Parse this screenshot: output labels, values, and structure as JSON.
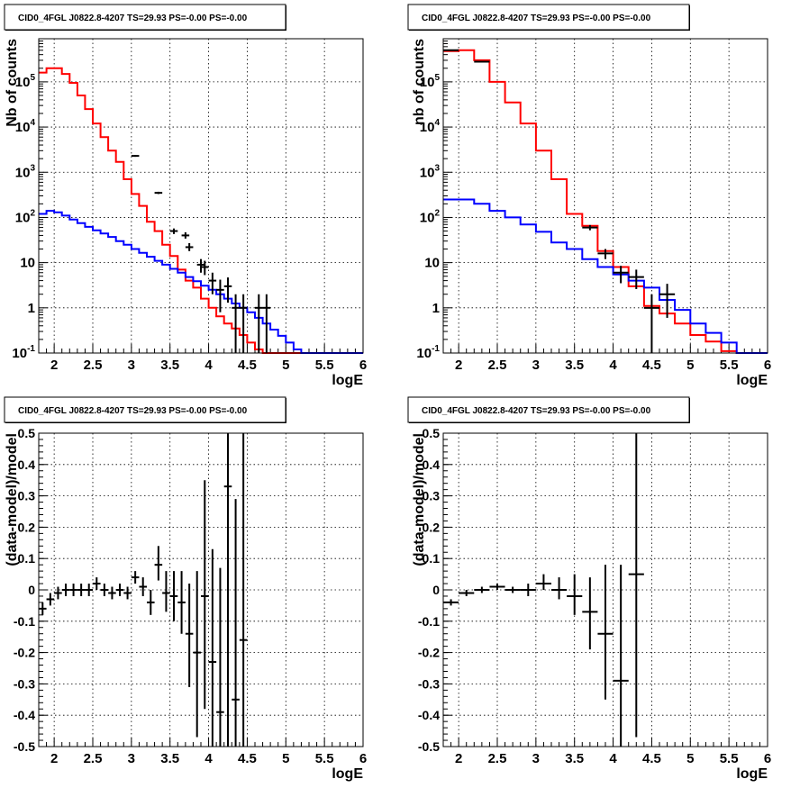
{
  "chart_data": [
    {
      "type": "line",
      "title": "CID0_4FGL J0822.8-4207 TS=29.93 PS=-0.00 PS=-0.00",
      "xlabel": "logE",
      "ylabel": "Nb of counts",
      "xlim": [
        1.8,
        6.0
      ],
      "ylim": [
        0.1,
        900000
      ],
      "yscale": "log",
      "grid": true,
      "xticks": [
        "2",
        "2.5",
        "3",
        "3.5",
        "4",
        "4.5",
        "5",
        "5.5",
        "6"
      ],
      "yticks": [
        "10^-1",
        "1",
        "10",
        "10^2",
        "10^3",
        "10^4",
        "10^5"
      ],
      "series": [
        {
          "kind": "step",
          "color": "#ff0000",
          "edges": [
            1.8,
            1.9,
            2.0,
            2.1,
            2.2,
            2.3,
            2.4,
            2.5,
            2.6,
            2.7,
            2.8,
            2.9,
            3.0,
            3.1,
            3.2,
            3.3,
            3.4,
            3.5,
            3.6,
            3.7,
            3.8,
            3.9,
            4.0,
            4.1,
            4.2,
            4.3,
            4.4,
            4.5,
            4.6,
            4.7,
            4.8,
            4.9,
            5.0,
            5.1,
            5.2,
            5.3,
            5.4,
            5.5,
            5.6,
            5.7,
            5.8,
            5.9,
            6.0
          ],
          "values": [
            160000,
            200000,
            200000,
            150000,
            95000,
            50000,
            25000,
            12000,
            6000,
            3000,
            1700,
            700,
            330,
            180,
            80,
            50,
            25,
            14,
            7,
            4,
            2.8,
            1.6,
            1.0,
            0.65,
            0.45,
            0.35,
            0.25,
            0.17,
            0.12,
            0.1,
            0.1,
            0.1,
            0.1,
            0.1,
            0.1,
            0.1,
            0.1,
            0.1,
            0.1,
            0.1,
            0.1,
            0.1
          ]
        },
        {
          "kind": "step",
          "color": "#0000ff",
          "edges": [
            1.8,
            1.9,
            2.0,
            2.1,
            2.2,
            2.3,
            2.4,
            2.5,
            2.6,
            2.7,
            2.8,
            2.9,
            3.0,
            3.1,
            3.2,
            3.3,
            3.4,
            3.5,
            3.6,
            3.7,
            3.8,
            3.9,
            4.0,
            4.1,
            4.2,
            4.3,
            4.4,
            4.5,
            4.6,
            4.7,
            4.8,
            4.9,
            5.0,
            5.1,
            5.2,
            5.3,
            5.4,
            5.5,
            5.6,
            5.7,
            5.8,
            5.9,
            6.0
          ],
          "values": [
            120,
            140,
            130,
            110,
            90,
            75,
            62,
            52,
            44,
            37,
            30,
            25,
            20,
            16.5,
            13.5,
            11,
            9,
            7.3,
            6,
            4.8,
            3.9,
            3.1,
            2.5,
            2.0,
            1.6,
            1.25,
            1.0,
            0.8,
            0.6,
            0.45,
            0.33,
            0.24,
            0.17,
            0.12,
            0.1,
            0.1,
            0.1,
            0.1,
            0.1,
            0.1,
            0.1,
            0.1
          ]
        },
        {
          "kind": "points",
          "color": "#000000",
          "points": [
            {
              "x": 3.05,
              "y": 2300,
              "xerr": 0.05,
              "ylo": 2200,
              "yhi": 2400
            },
            {
              "x": 3.35,
              "y": 350,
              "xerr": 0.05,
              "ylo": 330,
              "yhi": 370
            },
            {
              "x": 3.55,
              "y": 50,
              "xerr": 0.05,
              "ylo": 43,
              "yhi": 57
            },
            {
              "x": 3.7,
              "y": 40,
              "xerr": 0.05,
              "ylo": 34,
              "yhi": 47
            },
            {
              "x": 3.75,
              "y": 22,
              "xerr": 0.05,
              "ylo": 18,
              "yhi": 27
            },
            {
              "x": 3.9,
              "y": 9,
              "xerr": 0.05,
              "ylo": 6,
              "yhi": 12
            },
            {
              "x": 3.95,
              "y": 8,
              "xerr": 0.05,
              "ylo": 5.3,
              "yhi": 11
            },
            {
              "x": 4.05,
              "y": 4,
              "xerr": 0.05,
              "ylo": 2,
              "yhi": 6
            },
            {
              "x": 4.15,
              "y": 2.5,
              "xerr": 0.05,
              "ylo": 0.8,
              "yhi": 4.2
            },
            {
              "x": 4.25,
              "y": 3,
              "xerr": 0.05,
              "ylo": 1.3,
              "yhi": 4.7
            },
            {
              "x": 4.35,
              "y": 1,
              "xerr": 0.05,
              "ylo": 0.1,
              "yhi": 2
            },
            {
              "x": 4.45,
              "y": 1,
              "xerr": 0.05,
              "ylo": 0.1,
              "yhi": 2
            },
            {
              "x": 4.65,
              "y": 1,
              "xerr": 0.05,
              "ylo": 0.1,
              "yhi": 2
            },
            {
              "x": 4.75,
              "y": 1,
              "xerr": 0.05,
              "ylo": 0.1,
              "yhi": 2
            }
          ]
        }
      ]
    },
    {
      "type": "line",
      "title": "CID0_4FGL J0822.8-4207 TS=29.93 PS=-0.00 PS=-0.00",
      "xlabel": "logE",
      "ylabel": "nb of counts",
      "xlim": [
        1.8,
        6.0
      ],
      "ylim": [
        0.1,
        900000
      ],
      "yscale": "log",
      "grid": true,
      "xticks": [
        "2",
        "2.5",
        "3",
        "3.5",
        "4",
        "4.5",
        "5",
        "5.5",
        "6"
      ],
      "yticks": [
        "10^-1",
        "1",
        "10",
        "10^2",
        "10^3",
        "10^4",
        "10^5"
      ],
      "series": [
        {
          "kind": "step",
          "color": "#ff0000",
          "edges": [
            1.8,
            2.0,
            2.2,
            2.4,
            2.6,
            2.8,
            3.0,
            3.2,
            3.4,
            3.6,
            3.8,
            4.0,
            4.2,
            4.4,
            4.6,
            4.8,
            5.0,
            5.2,
            5.4,
            5.6,
            5.8,
            6.0
          ],
          "values": [
            480000,
            500000,
            300000,
            100000,
            35000,
            12000,
            3000,
            700,
            120,
            65,
            18,
            8,
            3,
            1.1,
            0.75,
            0.45,
            0.25,
            0.18,
            0.11,
            0.1,
            0.1
          ]
        },
        {
          "kind": "step",
          "color": "#0000ff",
          "edges": [
            1.8,
            2.0,
            2.2,
            2.4,
            2.6,
            2.8,
            3.0,
            3.2,
            3.4,
            3.6,
            3.8,
            4.0,
            4.2,
            4.4,
            4.6,
            4.8,
            5.0,
            5.2,
            5.4,
            5.6,
            5.8,
            6.0
          ],
          "values": [
            250,
            250,
            200,
            140,
            100,
            70,
            48,
            28,
            20,
            12,
            8,
            5.5,
            4,
            2.8,
            1.5,
            0.9,
            0.45,
            0.28,
            0.17,
            0.1,
            0.1
          ]
        },
        {
          "kind": "points",
          "color": "#000000",
          "points": [
            {
              "x": 1.9,
              "y": 500000,
              "xerr": 0.1,
              "ylo": 490000,
              "yhi": 510000
            },
            {
              "x": 2.3,
              "y": 280000,
              "xerr": 0.1,
              "ylo": 275000,
              "yhi": 285000
            },
            {
              "x": 3.7,
              "y": 60,
              "xerr": 0.1,
              "ylo": 52,
              "yhi": 68
            },
            {
              "x": 3.9,
              "y": 16,
              "xerr": 0.1,
              "ylo": 12,
              "yhi": 20
            },
            {
              "x": 4.1,
              "y": 6,
              "xerr": 0.1,
              "ylo": 3.5,
              "yhi": 8.5
            },
            {
              "x": 4.3,
              "y": 4.8,
              "xerr": 0.1,
              "ylo": 2.6,
              "yhi": 7
            },
            {
              "x": 4.5,
              "y": 1,
              "xerr": 0.1,
              "ylo": 0.1,
              "yhi": 2
            },
            {
              "x": 4.7,
              "y": 2,
              "xerr": 0.1,
              "ylo": 0.6,
              "yhi": 3.4
            }
          ]
        }
      ]
    },
    {
      "type": "scatter",
      "title": "CID0_4FGL J0822.8-4207 TS=29.93 PS=-0.00 PS=-0.00",
      "xlabel": "logE",
      "ylabel": "(data-model)/model",
      "xlim": [
        1.8,
        6.0
      ],
      "ylim": [
        -0.5,
        0.5
      ],
      "grid": true,
      "xticks": [
        "2",
        "2.5",
        "3",
        "3.5",
        "4",
        "4.5",
        "5",
        "5.5",
        "6"
      ],
      "yticks": [
        "-0.5",
        "-0.4",
        "-0.3",
        "-0.2",
        "-0.1",
        "0",
        "0.1",
        "0.2",
        "0.3",
        "0.4",
        "0.5"
      ],
      "series": [
        {
          "kind": "points",
          "color": "#000000",
          "points": [
            {
              "x": 1.85,
              "y": -0.06,
              "xerr": 0.05,
              "ylo": -0.08,
              "yhi": -0.04
            },
            {
              "x": 1.95,
              "y": -0.03,
              "xerr": 0.05,
              "ylo": -0.05,
              "yhi": -0.01
            },
            {
              "x": 2.05,
              "y": -0.01,
              "xerr": 0.05,
              "ylo": -0.03,
              "yhi": 0.01
            },
            {
              "x": 2.15,
              "y": 0.0,
              "xerr": 0.05,
              "ylo": -0.02,
              "yhi": 0.02
            },
            {
              "x": 2.25,
              "y": 0.0,
              "xerr": 0.05,
              "ylo": -0.02,
              "yhi": 0.02
            },
            {
              "x": 2.35,
              "y": 0.0,
              "xerr": 0.05,
              "ylo": -0.02,
              "yhi": 0.02
            },
            {
              "x": 2.45,
              "y": 0.0,
              "xerr": 0.05,
              "ylo": -0.02,
              "yhi": 0.02
            },
            {
              "x": 2.55,
              "y": 0.02,
              "xerr": 0.05,
              "ylo": 0.0,
              "yhi": 0.04
            },
            {
              "x": 2.65,
              "y": 0.0,
              "xerr": 0.05,
              "ylo": -0.02,
              "yhi": 0.02
            },
            {
              "x": 2.75,
              "y": -0.01,
              "xerr": 0.05,
              "ylo": -0.03,
              "yhi": 0.01
            },
            {
              "x": 2.85,
              "y": 0.0,
              "xerr": 0.05,
              "ylo": -0.02,
              "yhi": 0.02
            },
            {
              "x": 2.95,
              "y": -0.01,
              "xerr": 0.05,
              "ylo": -0.03,
              "yhi": 0.01
            },
            {
              "x": 3.05,
              "y": 0.04,
              "xerr": 0.05,
              "ylo": 0.02,
              "yhi": 0.06
            },
            {
              "x": 3.15,
              "y": 0.01,
              "xerr": 0.05,
              "ylo": -0.02,
              "yhi": 0.04
            },
            {
              "x": 3.25,
              "y": -0.04,
              "xerr": 0.05,
              "ylo": -0.08,
              "yhi": 0.0
            },
            {
              "x": 3.35,
              "y": 0.08,
              "xerr": 0.05,
              "ylo": 0.03,
              "yhi": 0.14
            },
            {
              "x": 3.45,
              "y": -0.01,
              "xerr": 0.05,
              "ylo": -0.07,
              "yhi": 0.06
            },
            {
              "x": 3.55,
              "y": -0.02,
              "xerr": 0.05,
              "ylo": -0.1,
              "yhi": 0.06
            },
            {
              "x": 3.65,
              "y": -0.04,
              "xerr": 0.05,
              "ylo": -0.14,
              "yhi": 0.06
            },
            {
              "x": 3.75,
              "y": -0.14,
              "xerr": 0.05,
              "ylo": -0.31,
              "yhi": 0.02
            },
            {
              "x": 3.85,
              "y": -0.2,
              "xerr": 0.05,
              "ylo": -0.47,
              "yhi": 0.06
            },
            {
              "x": 3.95,
              "y": -0.02,
              "xerr": 0.05,
              "ylo": -0.38,
              "yhi": 0.35
            },
            {
              "x": 4.05,
              "y": -0.23,
              "xerr": 0.05,
              "ylo": -0.5,
              "yhi": 0.13
            },
            {
              "x": 4.15,
              "y": -0.39,
              "xerr": 0.05,
              "ylo": -0.5,
              "yhi": 0.07
            },
            {
              "x": 4.25,
              "y": 0.33,
              "xerr": 0.05,
              "ylo": -0.5,
              "yhi": 0.5
            },
            {
              "x": 4.35,
              "y": -0.35,
              "xerr": 0.05,
              "ylo": -0.5,
              "yhi": 0.29
            },
            {
              "x": 4.45,
              "y": -0.16,
              "xerr": 0.05,
              "ylo": -0.5,
              "yhi": 0.5
            }
          ]
        }
      ]
    },
    {
      "type": "scatter",
      "title": "CID0_4FGL J0822.8-4207 TS=29.93 PS=-0.00 PS=-0.00",
      "xlabel": "logE",
      "ylabel": "(data-model)/model",
      "xlim": [
        1.8,
        6.0
      ],
      "ylim": [
        -0.5,
        0.5
      ],
      "grid": true,
      "xticks": [
        "2",
        "2.5",
        "3",
        "3.5",
        "4",
        "4.5",
        "5",
        "5.5",
        "6"
      ],
      "yticks": [
        "-0.5",
        "-0.4",
        "-0.3",
        "-0.2",
        "-0.1",
        "0",
        "0.1",
        "0.2",
        "0.3",
        "0.4",
        "0.5"
      ],
      "series": [
        {
          "kind": "points",
          "color": "#000000",
          "points": [
            {
              "x": 1.9,
              "y": -0.04,
              "xerr": 0.1,
              "ylo": -0.05,
              "yhi": -0.03
            },
            {
              "x": 2.1,
              "y": -0.01,
              "xerr": 0.1,
              "ylo": -0.02,
              "yhi": 0.0
            },
            {
              "x": 2.3,
              "y": 0.0,
              "xerr": 0.1,
              "ylo": -0.01,
              "yhi": 0.01
            },
            {
              "x": 2.5,
              "y": 0.01,
              "xerr": 0.1,
              "ylo": 0.0,
              "yhi": 0.02
            },
            {
              "x": 2.7,
              "y": 0.0,
              "xerr": 0.1,
              "ylo": -0.01,
              "yhi": 0.01
            },
            {
              "x": 2.9,
              "y": 0.0,
              "xerr": 0.1,
              "ylo": -0.02,
              "yhi": 0.02
            },
            {
              "x": 3.1,
              "y": 0.02,
              "xerr": 0.1,
              "ylo": 0.0,
              "yhi": 0.05
            },
            {
              "x": 3.3,
              "y": 0.0,
              "xerr": 0.1,
              "ylo": -0.03,
              "yhi": 0.04
            },
            {
              "x": 3.5,
              "y": -0.02,
              "xerr": 0.1,
              "ylo": -0.08,
              "yhi": 0.05
            },
            {
              "x": 3.7,
              "y": -0.07,
              "xerr": 0.1,
              "ylo": -0.19,
              "yhi": 0.04
            },
            {
              "x": 3.9,
              "y": -0.14,
              "xerr": 0.1,
              "ylo": -0.35,
              "yhi": 0.08
            },
            {
              "x": 4.1,
              "y": -0.29,
              "xerr": 0.1,
              "ylo": -0.5,
              "yhi": 0.08
            },
            {
              "x": 4.3,
              "y": 0.05,
              "xerr": 0.1,
              "ylo": -0.47,
              "yhi": 0.5
            }
          ]
        }
      ]
    }
  ]
}
